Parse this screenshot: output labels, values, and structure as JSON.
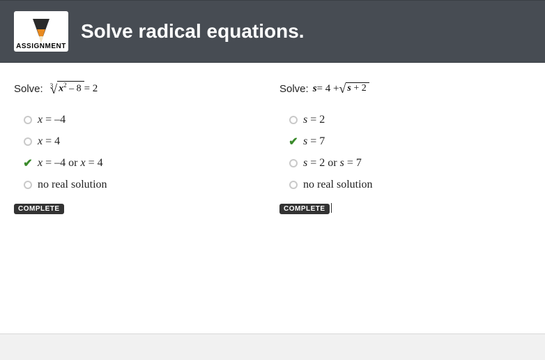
{
  "header": {
    "logo_label": "ASSIGNMENT",
    "title": "Solve radical equations."
  },
  "colors": {
    "header_bg": "#474c53",
    "check_color": "#3a8a2b",
    "badge_bg": "#333333",
    "pencil_orange": "#e88a1f",
    "pencil_dark": "#2a2a2a"
  },
  "left": {
    "solve_label": "Solve:",
    "equation": {
      "root_index": "3",
      "radicand_var": "x",
      "radicand_exp": "2",
      "radicand_tail": " – 8",
      "rhs": " = 2"
    },
    "options": [
      {
        "selected": false,
        "html": "<span class='var'>x</span> = –4"
      },
      {
        "selected": false,
        "html": "<span class='var'>x</span> = 4"
      },
      {
        "selected": true,
        "html": "<span class='var'>x</span> = –4 or <span class='var'>x</span> = 4"
      },
      {
        "selected": false,
        "html": "no real solution"
      }
    ],
    "complete": "COMPLETE"
  },
  "right": {
    "solve_label": "Solve:",
    "equation": {
      "lhs_var": "s",
      "lhs_tail": " = 4 + ",
      "radicand_var": "s",
      "radicand_tail": " + 2"
    },
    "options": [
      {
        "selected": false,
        "html": "<span class='var'>s</span> = 2"
      },
      {
        "selected": true,
        "html": "<span class='var'>s</span> = 7"
      },
      {
        "selected": false,
        "html": "<span class='var'>s</span> = 2 or <span class='var'>s</span> = 7"
      },
      {
        "selected": false,
        "html": "no real solution"
      }
    ],
    "complete": "COMPLETE"
  }
}
